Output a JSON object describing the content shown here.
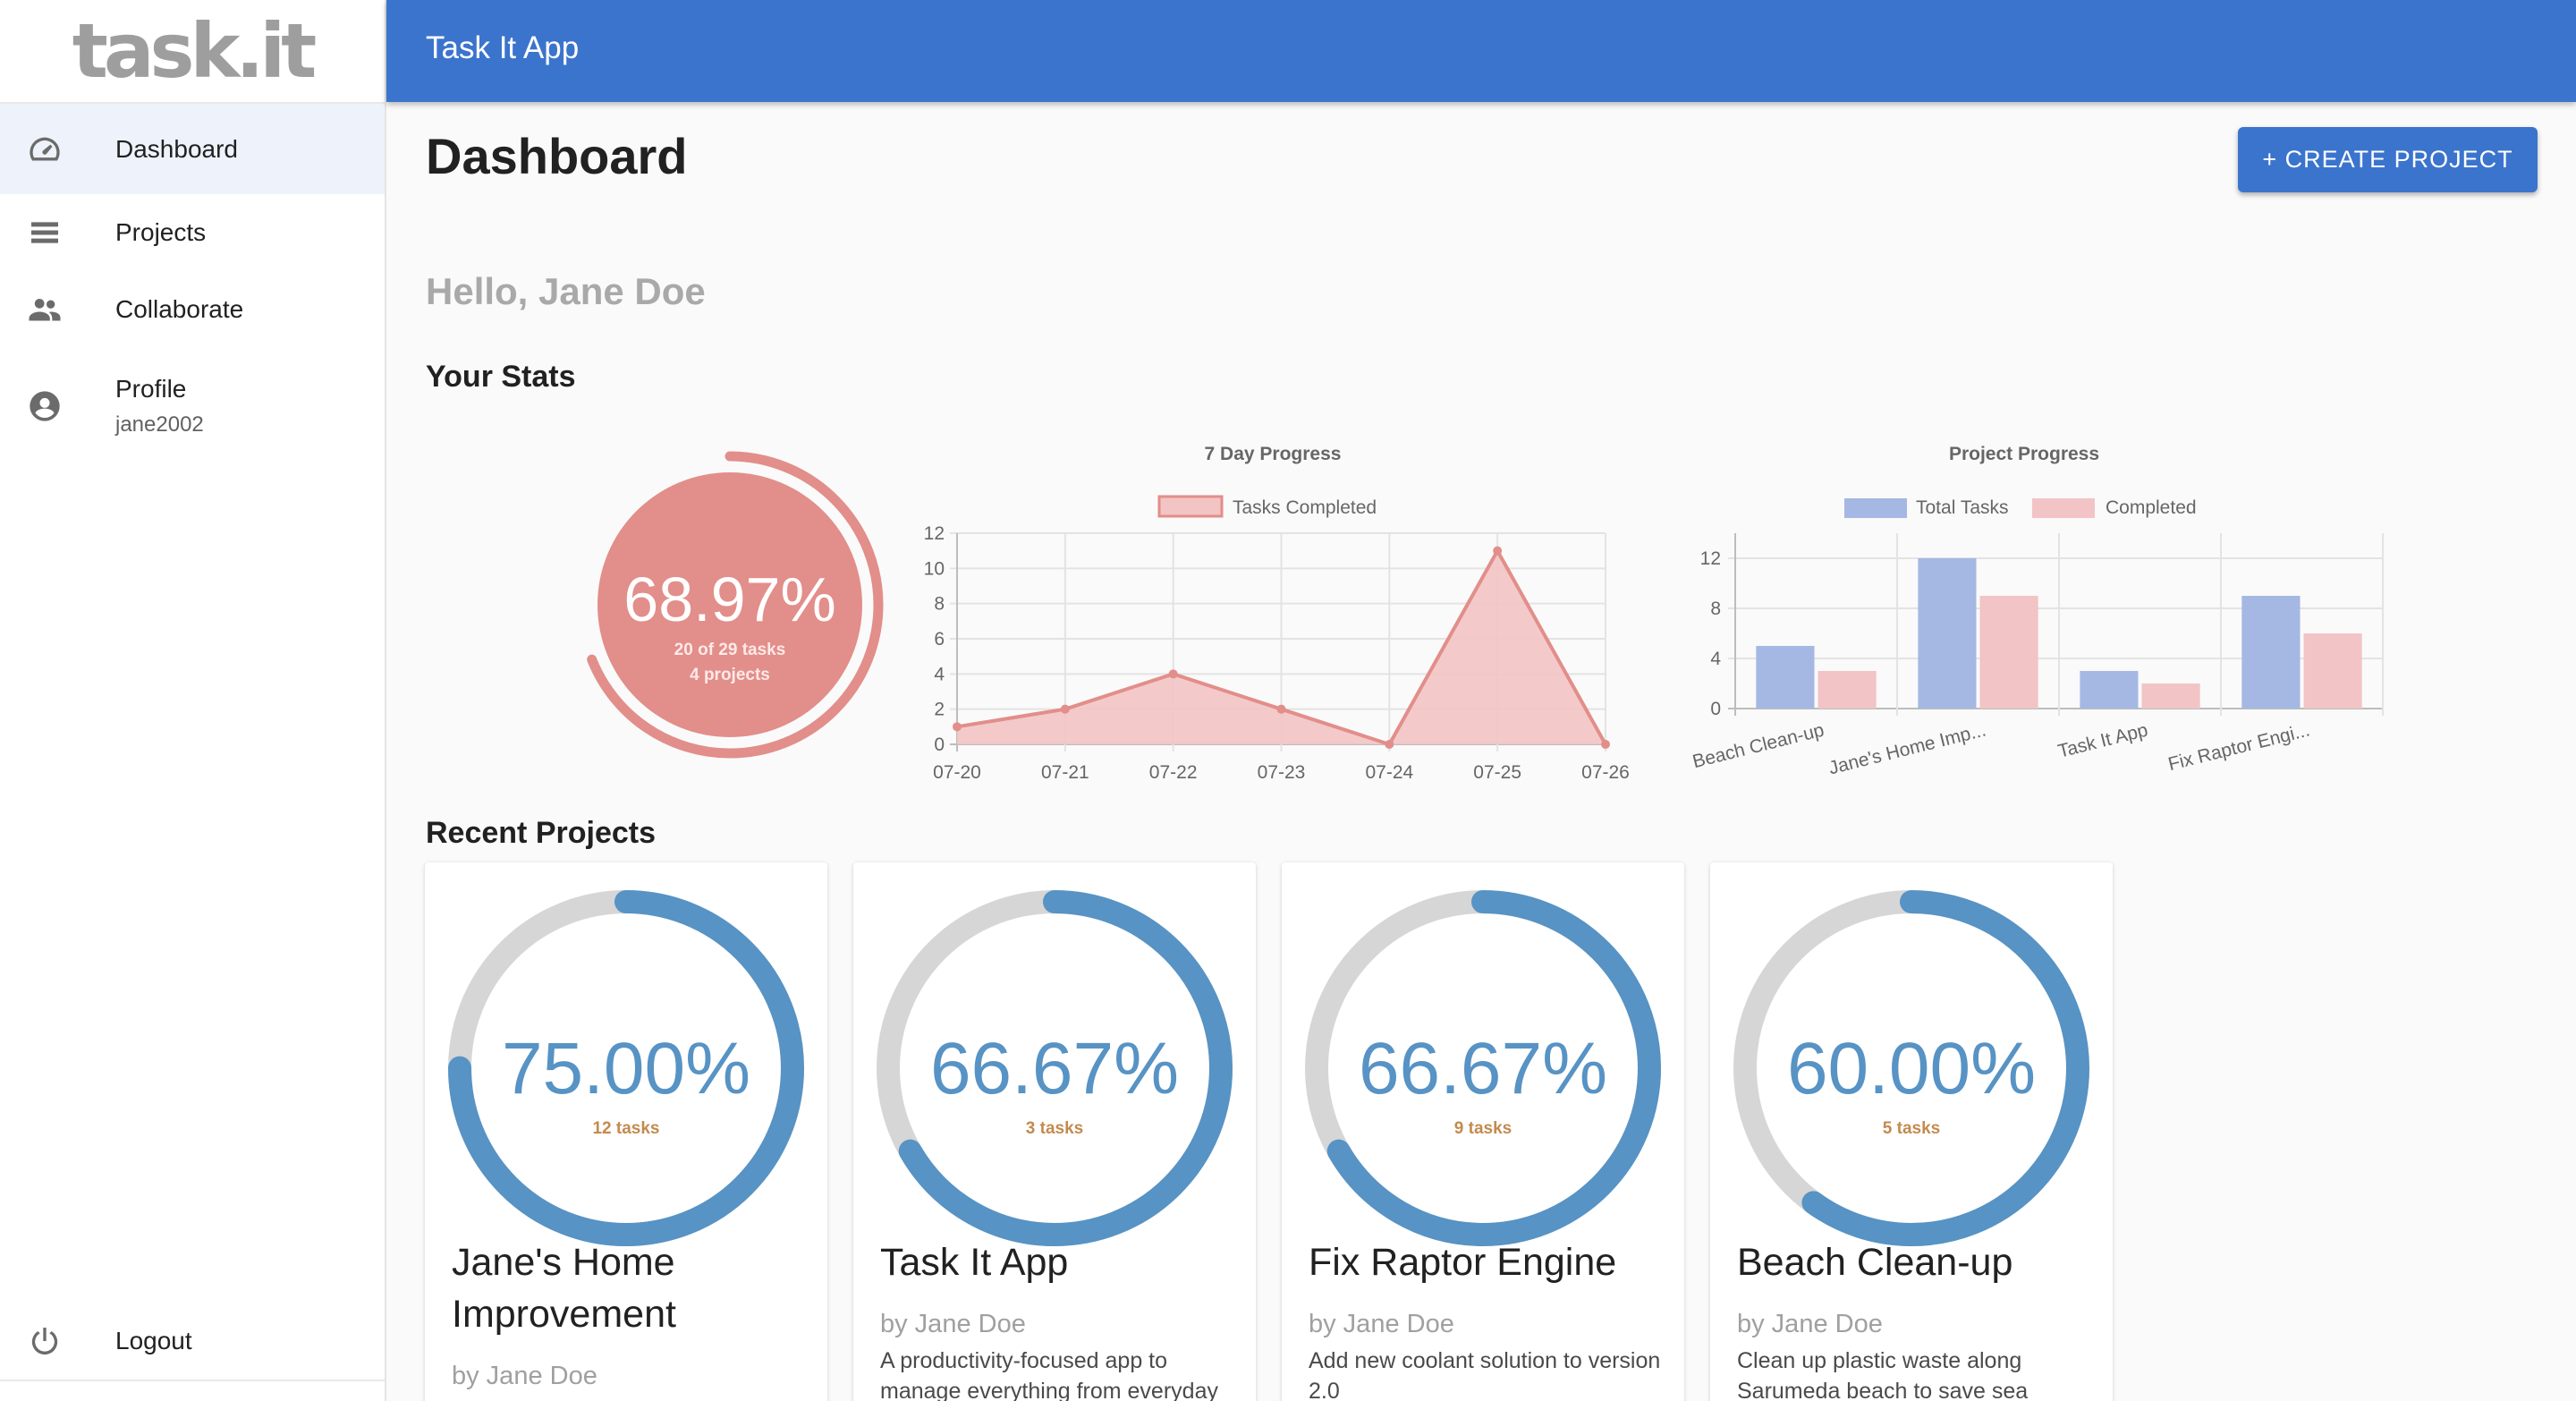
{
  "logo": "task.it",
  "sidebar": {
    "items": [
      {
        "label": "Dashboard",
        "icon": "speedometer-icon"
      },
      {
        "label": "Projects",
        "icon": "list-icon"
      },
      {
        "label": "Collaborate",
        "icon": "people-icon"
      },
      {
        "label": "Profile",
        "sub": "jane2002",
        "icon": "account-circle-icon"
      }
    ],
    "logout": "Logout"
  },
  "appbar": {
    "title": "Task It App"
  },
  "main": {
    "title": "Dashboard",
    "create_button": "+ CREATE PROJECT",
    "greeting": "Hello, Jane Doe",
    "stats_title": "Your Stats",
    "recent_title": "Recent Projects"
  },
  "overall": {
    "percent_text": "68.97%",
    "percent": 68.97,
    "tasks_text": "20 of 29 tasks",
    "projects_text": "4 projects",
    "color": "#e28e8a"
  },
  "chart_data": [
    {
      "type": "area",
      "title": "7 Day Progress",
      "x": [
        "07-20",
        "07-21",
        "07-22",
        "07-23",
        "07-24",
        "07-25",
        "07-26"
      ],
      "series": [
        {
          "name": "Tasks Completed",
          "values": [
            1,
            2,
            4,
            2,
            0,
            11,
            0
          ]
        }
      ],
      "ylim": [
        0,
        12
      ],
      "yticks": [
        0,
        2,
        4,
        6,
        8,
        10,
        12
      ],
      "grid": true,
      "legend": "top",
      "colors": {
        "line": "#e28e8a",
        "fill": "#f2c4c3"
      }
    },
    {
      "type": "bar",
      "title": "Project Progress",
      "categories": [
        "Beach Clean-up",
        "Jane's Home Imp...",
        "Task It App",
        "Fix Raptor Engi..."
      ],
      "series": [
        {
          "name": "Total Tasks",
          "values": [
            5,
            12,
            3,
            9
          ]
        },
        {
          "name": "Completed",
          "values": [
            3,
            9,
            2,
            6
          ]
        }
      ],
      "ylim": [
        0,
        14
      ],
      "yticks": [
        0,
        4,
        8,
        12
      ],
      "grid": true,
      "legend": "top",
      "colors": {
        "Total Tasks": "#a5b8e3",
        "Completed": "#f2c4c6"
      }
    }
  ],
  "projects": [
    {
      "percent_text": "75.00%",
      "percent": 75.0,
      "tasks": "12 tasks",
      "title": "Jane's Home Improvement",
      "author": "by Jane Doe",
      "desc": ""
    },
    {
      "percent_text": "66.67%",
      "percent": 66.67,
      "tasks": "3 tasks",
      "title": "Task It App",
      "author": "by Jane Doe",
      "desc": "A productivity-focused app to manage everything from everyday"
    },
    {
      "percent_text": "66.67%",
      "percent": 66.67,
      "tasks": "9 tasks",
      "title": "Fix Raptor Engine",
      "author": "by Jane Doe",
      "desc": "Add new coolant solution to version 2.0"
    },
    {
      "percent_text": "60.00%",
      "percent": 60.0,
      "tasks": "5 tasks",
      "title": "Beach Clean-up",
      "author": "by Jane Doe",
      "desc": "Clean up plastic waste along Sarumeda beach to save sea"
    }
  ],
  "colors": {
    "primary": "#3b74cd",
    "ring": "#5793c4",
    "ring_track": "#d6d6d6"
  }
}
